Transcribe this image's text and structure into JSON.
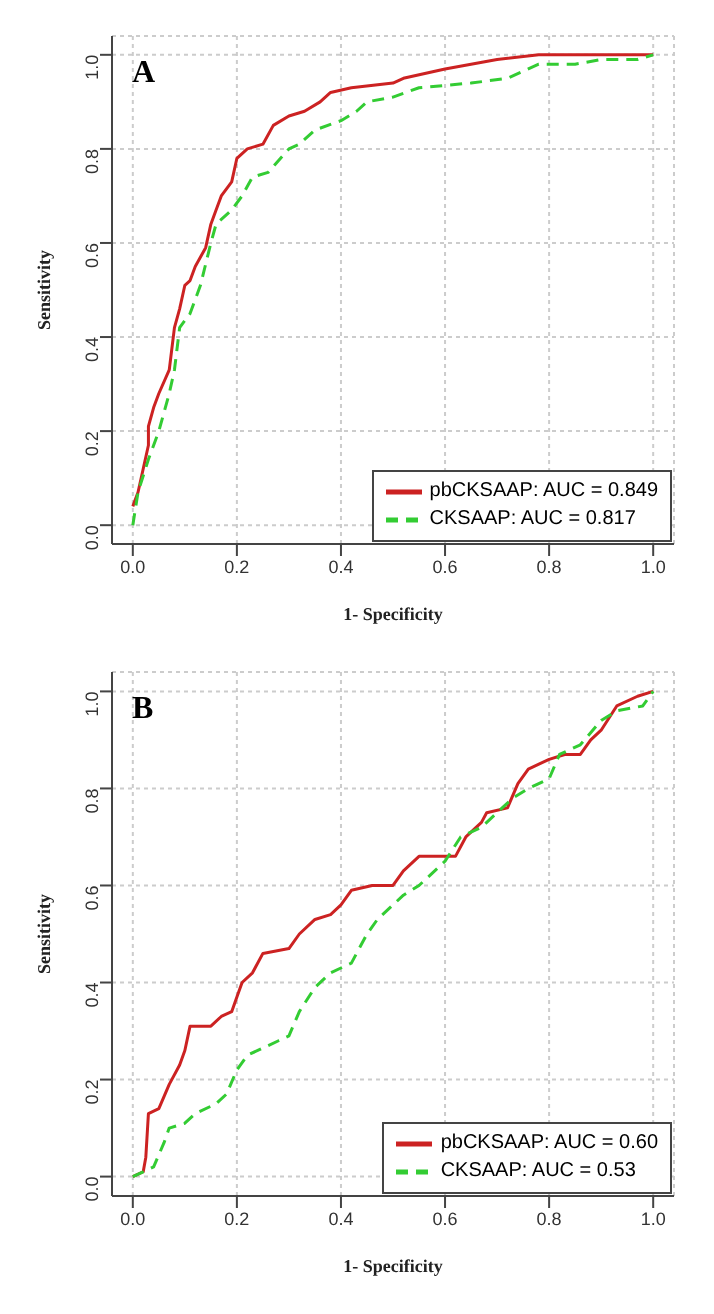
{
  "chart_data": [
    {
      "type": "line",
      "title": "A",
      "xlabel": "1- Specificity",
      "ylabel": "Sensitivity",
      "xlim": [
        -0.04,
        1.04
      ],
      "ylim": [
        -0.04,
        1.04
      ],
      "xticks": [
        {
          "value": 0,
          "label": "0.0"
        },
        {
          "value": 0.2,
          "label": "0.2"
        },
        {
          "value": 0.4,
          "label": "0.4"
        },
        {
          "value": 0.6,
          "label": "0.6"
        },
        {
          "value": 0.8,
          "label": "0.8"
        },
        {
          "value": 1,
          "label": "1.0"
        }
      ],
      "yticks": [
        {
          "value": 0,
          "label": "0.0"
        },
        {
          "value": 0.2,
          "label": "0.2"
        },
        {
          "value": 0.4,
          "label": "0.4"
        },
        {
          "value": 0.6,
          "label": "0.6"
        },
        {
          "value": 0.8,
          "label": "0.8"
        },
        {
          "value": 1,
          "label": "1.0"
        }
      ],
      "grid": true,
      "legend": "bottom right",
      "marker": "none",
      "series": [
        {
          "name": "pbCKSAAP: AUC = 0.849",
          "color": "#cc2222",
          "line_style": "solid",
          "x": [
            0,
            0.01,
            0.02,
            0.03,
            0.03,
            0.04,
            0.05,
            0.07,
            0.08,
            0.09,
            0.1,
            0.11,
            0.12,
            0.14,
            0.15,
            0.16,
            0.17,
            0.19,
            0.2,
            0.22,
            0.25,
            0.27,
            0.3,
            0.33,
            0.36,
            0.38,
            0.42,
            0.5,
            0.52,
            0.6,
            0.7,
            0.78,
            1.0
          ],
          "values": [
            0.04,
            0.07,
            0.12,
            0.17,
            0.21,
            0.25,
            0.28,
            0.33,
            0.42,
            0.46,
            0.51,
            0.52,
            0.55,
            0.59,
            0.64,
            0.67,
            0.7,
            0.73,
            0.78,
            0.8,
            0.81,
            0.85,
            0.87,
            0.88,
            0.9,
            0.92,
            0.93,
            0.94,
            0.95,
            0.97,
            0.99,
            1.0,
            1.0
          ]
        },
        {
          "name": "CKSAAP: AUC = 0.817",
          "color": "#33cc33",
          "line_style": "dashed",
          "x": [
            0,
            0.01,
            0.03,
            0.05,
            0.07,
            0.08,
            0.09,
            0.11,
            0.13,
            0.15,
            0.16,
            0.19,
            0.21,
            0.23,
            0.26,
            0.3,
            0.32,
            0.35,
            0.4,
            0.43,
            0.45,
            0.5,
            0.55,
            0.65,
            0.72,
            0.78,
            0.85,
            0.9,
            0.97,
            1.0
          ],
          "values": [
            0,
            0.07,
            0.14,
            0.2,
            0.28,
            0.33,
            0.42,
            0.45,
            0.51,
            0.6,
            0.64,
            0.67,
            0.7,
            0.74,
            0.75,
            0.8,
            0.81,
            0.84,
            0.86,
            0.88,
            0.9,
            0.91,
            0.93,
            0.94,
            0.95,
            0.98,
            0.98,
            0.99,
            0.99,
            1.0
          ]
        }
      ]
    },
    {
      "type": "line",
      "title": "B",
      "xlabel": "1- Specificity",
      "ylabel": "Sensitivity",
      "xlim": [
        -0.04,
        1.04
      ],
      "ylim": [
        -0.04,
        1.04
      ],
      "xticks": [
        {
          "value": 0,
          "label": "0.0"
        },
        {
          "value": 0.2,
          "label": "0.2"
        },
        {
          "value": 0.4,
          "label": "0.4"
        },
        {
          "value": 0.6,
          "label": "0.6"
        },
        {
          "value": 0.8,
          "label": "0.8"
        },
        {
          "value": 1,
          "label": "1.0"
        }
      ],
      "yticks": [
        {
          "value": 0,
          "label": "0.0"
        },
        {
          "value": 0.2,
          "label": "0.2"
        },
        {
          "value": 0.4,
          "label": "0.4"
        },
        {
          "value": 0.6,
          "label": "0.6"
        },
        {
          "value": 0.8,
          "label": "0.8"
        },
        {
          "value": 1,
          "label": "1.0"
        }
      ],
      "grid": true,
      "legend": "bottom right",
      "marker": "none",
      "series": [
        {
          "name": "pbCKSAAP: AUC = 0.60",
          "color": "#cc2222",
          "line_style": "solid",
          "x": [
            0,
            0.02,
            0.025,
            0.03,
            0.05,
            0.07,
            0.09,
            0.1,
            0.11,
            0.15,
            0.17,
            0.19,
            0.2,
            0.21,
            0.23,
            0.25,
            0.3,
            0.32,
            0.35,
            0.38,
            0.4,
            0.42,
            0.46,
            0.5,
            0.52,
            0.55,
            0.62,
            0.64,
            0.67,
            0.68,
            0.72,
            0.74,
            0.76,
            0.8,
            0.83,
            0.86,
            0.88,
            0.9,
            0.93,
            0.97,
            1.0
          ],
          "values": [
            0,
            0.01,
            0.04,
            0.13,
            0.14,
            0.19,
            0.23,
            0.26,
            0.31,
            0.31,
            0.33,
            0.34,
            0.37,
            0.4,
            0.42,
            0.46,
            0.47,
            0.5,
            0.53,
            0.54,
            0.56,
            0.59,
            0.6,
            0.6,
            0.63,
            0.66,
            0.66,
            0.7,
            0.73,
            0.75,
            0.76,
            0.81,
            0.84,
            0.86,
            0.87,
            0.87,
            0.9,
            0.92,
            0.97,
            0.99,
            1.0
          ]
        },
        {
          "name": "CKSAAP: AUC = 0.53",
          "color": "#33cc33",
          "line_style": "dashed",
          "x": [
            0,
            0.04,
            0.06,
            0.07,
            0.1,
            0.12,
            0.16,
            0.18,
            0.2,
            0.22,
            0.28,
            0.3,
            0.32,
            0.35,
            0.38,
            0.42,
            0.45,
            0.47,
            0.52,
            0.55,
            0.6,
            0.63,
            0.67,
            0.7,
            0.73,
            0.76,
            0.8,
            0.82,
            0.86,
            0.9,
            0.93,
            0.98,
            1.0
          ],
          "values": [
            0,
            0.02,
            0.07,
            0.1,
            0.11,
            0.13,
            0.15,
            0.17,
            0.22,
            0.25,
            0.28,
            0.29,
            0.34,
            0.39,
            0.42,
            0.44,
            0.5,
            0.53,
            0.58,
            0.6,
            0.65,
            0.7,
            0.72,
            0.75,
            0.78,
            0.8,
            0.82,
            0.87,
            0.89,
            0.94,
            0.96,
            0.97,
            1.0
          ]
        }
      ]
    }
  ]
}
